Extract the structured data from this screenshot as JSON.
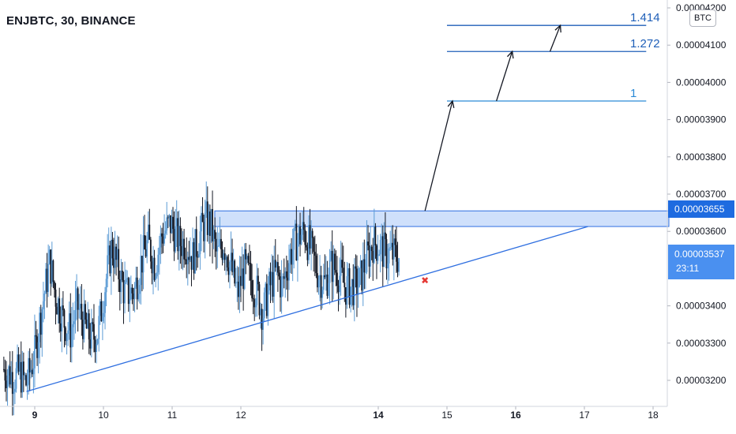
{
  "header": {
    "title": "ENJBTC, 30, BINANCE"
  },
  "currency_label": "BTC",
  "colors": {
    "accent": "#2962ff",
    "zone_fill": "#cfe0fb",
    "zone_line": "#2f6fe0",
    "candle_up": "#5b9bd5",
    "candle_down": "#131722",
    "fib": "#1f5fb8",
    "fib_base": "#2b8ad6",
    "stop": "#e53935"
  },
  "badges": {
    "zone_price": "0.00003655",
    "last_price": "0.00003537",
    "countdown": "23:11"
  },
  "chart_data": {
    "type": "candlestick",
    "xlabel": "",
    "ylabel": "",
    "ylim": [
      3.15e-05,
      4.21e-05
    ],
    "xlim": [
      8.55,
      18.5
    ],
    "x_ticks": [
      {
        "label": "9",
        "x": 9,
        "bold": true
      },
      {
        "label": "10",
        "x": 10,
        "bold": false
      },
      {
        "label": "11",
        "x": 11,
        "bold": false
      },
      {
        "label": "12",
        "x": 12,
        "bold": false
      },
      {
        "label": "14",
        "x": 14,
        "bold": true
      },
      {
        "label": "15",
        "x": 15,
        "bold": false
      },
      {
        "label": "16",
        "x": 16,
        "bold": true
      },
      {
        "label": "17",
        "x": 17,
        "bold": false
      },
      {
        "label": "18",
        "x": 18,
        "bold": false
      }
    ],
    "y_ticks": [
      {
        "label": "0.00003200",
        "y": 3.2e-05
      },
      {
        "label": "0.00003300",
        "y": 3.3e-05
      },
      {
        "label": "0.00003400",
        "y": 3.4e-05
      },
      {
        "label": "0.00003600",
        "y": 3.6e-05
      },
      {
        "label": "0.00003700",
        "y": 3.7e-05
      },
      {
        "label": "0.00003800",
        "y": 3.8e-05
      },
      {
        "label": "0.00003900",
        "y": 3.9e-05
      },
      {
        "label": "0.00004000",
        "y": 4e-05
      },
      {
        "label": "0.00004100",
        "y": 4.1e-05
      },
      {
        "label": "0.00004200",
        "y": 4.2e-05
      }
    ],
    "price_path": [
      [
        8.55,
        3.23e-05
      ],
      [
        8.7,
        3.21e-05
      ],
      [
        8.78,
        3.22e-05
      ],
      [
        8.88,
        3.19e-05
      ],
      [
        9.0,
        3.27e-05
      ],
      [
        9.1,
        3.39e-05
      ],
      [
        9.22,
        3.52e-05
      ],
      [
        9.3,
        3.43e-05
      ],
      [
        9.42,
        3.36e-05
      ],
      [
        9.52,
        3.33e-05
      ],
      [
        9.62,
        3.4e-05
      ],
      [
        9.72,
        3.35e-05
      ],
      [
        9.82,
        3.31e-05
      ],
      [
        9.92,
        3.33e-05
      ],
      [
        10.02,
        3.45e-05
      ],
      [
        10.12,
        3.56e-05
      ],
      [
        10.22,
        3.49e-05
      ],
      [
        10.32,
        3.43e-05
      ],
      [
        10.45,
        3.44e-05
      ],
      [
        10.55,
        3.52e-05
      ],
      [
        10.65,
        3.57e-05
      ],
      [
        10.75,
        3.51e-05
      ],
      [
        10.85,
        3.59e-05
      ],
      [
        10.98,
        3.62e-05
      ],
      [
        11.1,
        3.57e-05
      ],
      [
        11.2,
        3.57e-05
      ],
      [
        11.3,
        3.53e-05
      ],
      [
        11.4,
        3.59e-05
      ],
      [
        11.5,
        3.63e-05
      ],
      [
        11.57,
        3.61e-05
      ],
      [
        11.65,
        3.53e-05
      ],
      [
        11.75,
        3.57e-05
      ],
      [
        11.85,
        3.51e-05
      ],
      [
        11.95,
        3.43e-05
      ],
      [
        12.05,
        3.5e-05
      ],
      [
        12.15,
        3.47e-05
      ],
      [
        12.25,
        3.43e-05
      ],
      [
        12.32,
        3.38e-05
      ],
      [
        12.42,
        3.45e-05
      ],
      [
        12.52,
        3.49e-05
      ],
      [
        12.6,
        3.45e-05
      ],
      [
        12.72,
        3.54e-05
      ],
      [
        12.82,
        3.58e-05
      ],
      [
        12.92,
        3.6e-05
      ],
      [
        13.02,
        3.55e-05
      ],
      [
        13.12,
        3.49e-05
      ],
      [
        13.22,
        3.46e-05
      ],
      [
        13.32,
        3.51e-05
      ],
      [
        13.42,
        3.49e-05
      ],
      [
        13.52,
        3.45e-05
      ],
      [
        13.62,
        3.45e-05
      ],
      [
        13.72,
        3.46e-05
      ],
      [
        13.82,
        3.52e-05
      ],
      [
        13.92,
        3.57e-05
      ],
      [
        14.02,
        3.56e-05
      ],
      [
        14.1,
        3.54e-05
      ],
      [
        14.18,
        3.54e-05
      ],
      [
        14.3,
        3.53e-05
      ]
    ],
    "zone": {
      "x0": 11.62,
      "x1": 18.5,
      "y0": 3.613e-05,
      "y1": 3.655e-05
    },
    "trendline": {
      "x0": 8.88,
      "y0": 3.17e-05,
      "x1": 17.05,
      "y1": 3.613e-05
    },
    "fib_levels": [
      {
        "label": "1",
        "value": 3.95e-05,
        "x0": 15.0,
        "x1": 17.9,
        "color": "#2b8ad6"
      },
      {
        "label": "1.272",
        "value": 4.083e-05,
        "x0": 15.0,
        "x1": 17.9,
        "color": "#1f5fb8"
      },
      {
        "label": "1.414",
        "value": 4.153e-05,
        "x0": 15.0,
        "x1": 17.9,
        "color": "#1f5fb8"
      }
    ],
    "arrows": [
      {
        "x0": 14.68,
        "y0": 3.655e-05,
        "x1": 15.08,
        "y1": 3.95e-05
      },
      {
        "x0": 15.72,
        "y0": 3.95e-05,
        "x1": 15.95,
        "y1": 4.083e-05
      },
      {
        "x0": 16.5,
        "y0": 4.083e-05,
        "x1": 16.65,
        "y1": 4.153e-05
      }
    ],
    "stop_marker": {
      "x": 14.68,
      "y": 3.46e-05,
      "label": "✖"
    }
  }
}
